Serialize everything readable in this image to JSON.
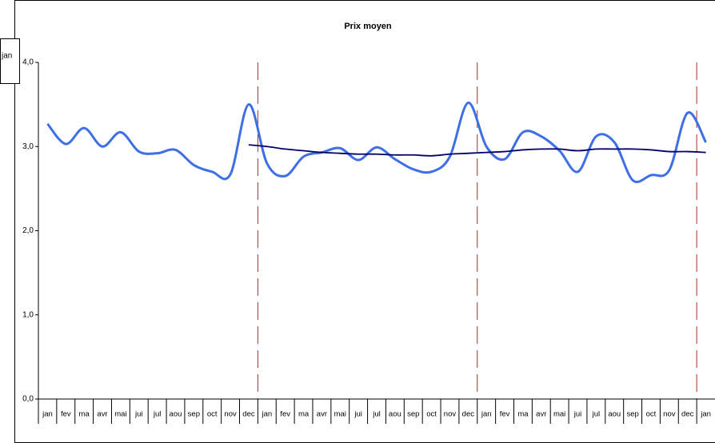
{
  "chart_data": {
    "type": "line",
    "title": "Prix moyen",
    "overlay_label": "jan",
    "categories": [
      "jan",
      "fev",
      "ma",
      "avr",
      "mai",
      "jui",
      "jul",
      "aou",
      "sep",
      "oct",
      "nov",
      "dec",
      "jan",
      "fev",
      "ma",
      "avr",
      "mai",
      "jui",
      "jul",
      "aou",
      "sep",
      "oct",
      "nov",
      "dec",
      "jan",
      "fev",
      "ma",
      "avr",
      "mai",
      "jui",
      "jul",
      "aou",
      "sep",
      "oct",
      "nov",
      "dec",
      "jan"
    ],
    "series": [
      {
        "color": "#3f6fe6",
        "values": [
          3.27,
          3.03,
          3.22,
          3.0,
          3.17,
          2.94,
          2.92,
          2.96,
          2.78,
          2.7,
          2.67,
          3.5,
          2.8,
          2.65,
          2.88,
          2.93,
          2.98,
          2.84,
          2.99,
          2.85,
          2.73,
          2.7,
          2.88,
          3.52,
          3.0,
          2.85,
          3.17,
          3.12,
          2.95,
          2.7,
          3.12,
          3.05,
          2.6,
          2.66,
          2.72,
          3.4,
          3.05
        ]
      },
      {
        "color": "#000066",
        "values": [
          null,
          null,
          null,
          null,
          null,
          null,
          null,
          null,
          null,
          null,
          null,
          3.02,
          3.0,
          2.97,
          2.95,
          2.93,
          2.92,
          2.91,
          2.91,
          2.9,
          2.9,
          2.89,
          2.91,
          2.92,
          2.93,
          2.94,
          2.96,
          2.97,
          2.97,
          2.95,
          2.97,
          2.97,
          2.97,
          2.96,
          2.94,
          2.94,
          2.93
        ]
      }
    ],
    "ylim": [
      0,
      4
    ],
    "yticks": [
      {
        "value": 0,
        "label": "0,0"
      },
      {
        "value": 1,
        "label": "1,0"
      },
      {
        "value": 2,
        "label": "2,0"
      },
      {
        "value": 3,
        "label": "3,0"
      },
      {
        "value": 4,
        "label": "4,0"
      }
    ]
  }
}
